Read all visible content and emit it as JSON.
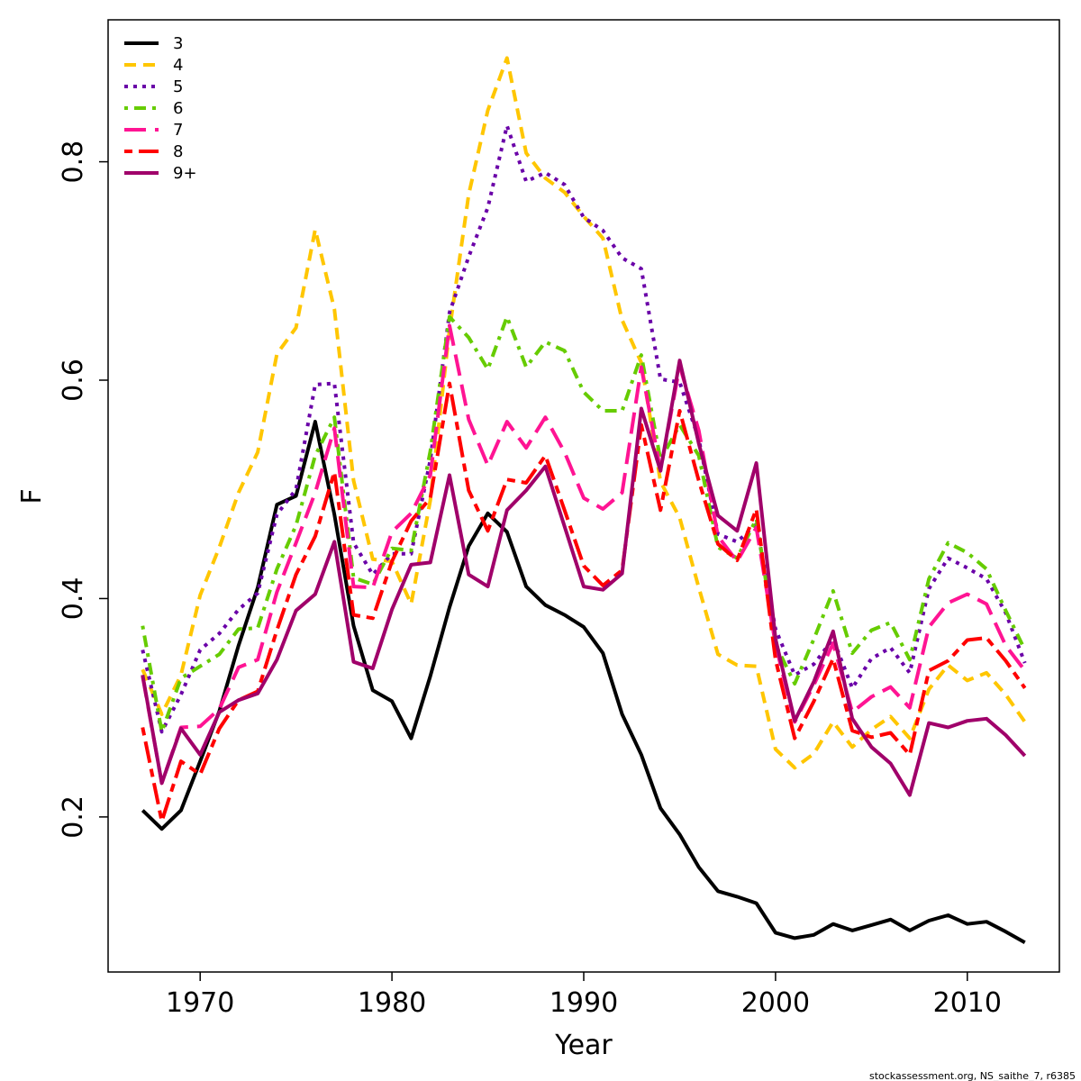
{
  "credit": "stockassessment.org, NS_saithe_7, r6385",
  "chart_data": {
    "type": "line",
    "xlabel": "Year",
    "ylabel": "F",
    "xlim": [
      1965.2,
      2014.8
    ],
    "ylim": [
      0.058,
      0.93
    ],
    "xticks": [
      1970,
      1980,
      1990,
      2000,
      2010
    ],
    "yticks": [
      0.2,
      0.4,
      0.6,
      0.8
    ],
    "grid": false,
    "legend_position": "top-left",
    "x": [
      1967,
      1968,
      1969,
      1970,
      1971,
      1972,
      1973,
      1974,
      1975,
      1976,
      1977,
      1978,
      1979,
      1980,
      1981,
      1982,
      1983,
      1984,
      1985,
      1986,
      1987,
      1988,
      1989,
      1990,
      1991,
      1992,
      1993,
      1994,
      1995,
      1996,
      1997,
      1998,
      1999,
      2000,
      2001,
      2002,
      2003,
      2004,
      2005,
      2006,
      2007,
      2008,
      2009,
      2010,
      2011,
      2012,
      2013
    ],
    "series": [
      {
        "name": "3",
        "color": "#000000",
        "dash": "solid",
        "values": [
          0.206,
          0.189,
          0.206,
          0.251,
          0.297,
          0.357,
          0.41,
          0.486,
          0.494,
          0.562,
          0.477,
          0.375,
          0.316,
          0.306,
          0.272,
          0.329,
          0.392,
          0.448,
          0.478,
          0.461,
          0.411,
          0.394,
          0.385,
          0.374,
          0.35,
          0.294,
          0.257,
          0.208,
          0.184,
          0.154,
          0.132,
          0.127,
          0.121,
          0.094,
          0.089,
          0.092,
          0.102,
          0.096,
          0.101,
          0.106,
          0.096,
          0.105,
          0.11,
          0.102,
          0.104,
          0.095,
          0.085
        ]
      },
      {
        "name": "4",
        "color": "#FFC600",
        "dash": "dash",
        "values": [
          0.335,
          0.294,
          0.33,
          0.403,
          0.447,
          0.497,
          0.534,
          0.624,
          0.648,
          0.738,
          0.665,
          0.508,
          0.436,
          0.434,
          0.395,
          0.49,
          0.646,
          0.77,
          0.847,
          0.895,
          0.808,
          0.785,
          0.772,
          0.75,
          0.73,
          0.655,
          0.616,
          0.507,
          0.474,
          0.41,
          0.349,
          0.339,
          0.338,
          0.262,
          0.245,
          0.258,
          0.287,
          0.264,
          0.28,
          0.292,
          0.272,
          0.317,
          0.339,
          0.325,
          0.332,
          0.312,
          0.287
        ]
      },
      {
        "name": "5",
        "color": "#6A00A8",
        "dash": "dot",
        "values": [
          0.353,
          0.278,
          0.312,
          0.353,
          0.368,
          0.39,
          0.405,
          0.477,
          0.5,
          0.596,
          0.597,
          0.451,
          0.422,
          0.441,
          0.441,
          0.527,
          0.662,
          0.713,
          0.758,
          0.833,
          0.782,
          0.79,
          0.779,
          0.749,
          0.737,
          0.712,
          0.702,
          0.601,
          0.598,
          0.546,
          0.459,
          0.452,
          0.468,
          0.372,
          0.33,
          0.34,
          0.363,
          0.318,
          0.345,
          0.355,
          0.332,
          0.409,
          0.437,
          0.428,
          0.418,
          0.387,
          0.341
        ]
      },
      {
        "name": "6",
        "color": "#66CC00",
        "dash": "dotdash",
        "values": [
          0.375,
          0.278,
          0.327,
          0.338,
          0.349,
          0.372,
          0.373,
          0.427,
          0.467,
          0.531,
          0.566,
          0.419,
          0.413,
          0.446,
          0.444,
          0.535,
          0.658,
          0.639,
          0.61,
          0.658,
          0.612,
          0.635,
          0.627,
          0.589,
          0.572,
          0.572,
          0.623,
          0.527,
          0.559,
          0.531,
          0.447,
          0.437,
          0.473,
          0.358,
          0.322,
          0.363,
          0.407,
          0.35,
          0.371,
          0.378,
          0.344,
          0.418,
          0.451,
          0.442,
          0.427,
          0.389,
          0.353
        ]
      },
      {
        "name": "7",
        "color": "#FF1493",
        "dash": "longdash",
        "values": [
          0.329,
          0.231,
          0.282,
          0.283,
          0.299,
          0.337,
          0.344,
          0.406,
          0.451,
          0.497,
          0.556,
          0.411,
          0.41,
          0.461,
          0.478,
          0.513,
          0.65,
          0.564,
          0.522,
          0.562,
          0.538,
          0.566,
          0.534,
          0.492,
          0.482,
          0.497,
          0.612,
          0.517,
          0.613,
          0.554,
          0.457,
          0.434,
          0.465,
          0.358,
          0.287,
          0.321,
          0.359,
          0.296,
          0.31,
          0.319,
          0.3,
          0.374,
          0.396,
          0.404,
          0.395,
          0.357,
          0.334
        ]
      },
      {
        "name": "8",
        "color": "#FF0000",
        "dash": "twodash",
        "values": [
          0.282,
          0.196,
          0.251,
          0.239,
          0.281,
          0.307,
          0.315,
          0.371,
          0.422,
          0.457,
          0.516,
          0.385,
          0.382,
          0.434,
          0.471,
          0.492,
          0.597,
          0.499,
          0.462,
          0.509,
          0.506,
          0.531,
          0.481,
          0.43,
          0.412,
          0.426,
          0.559,
          0.481,
          0.572,
          0.508,
          0.45,
          0.435,
          0.482,
          0.344,
          0.272,
          0.306,
          0.345,
          0.279,
          0.273,
          0.277,
          0.257,
          0.334,
          0.343,
          0.362,
          0.364,
          0.343,
          0.318
        ]
      },
      {
        "name": "9+",
        "color": "#A0006A",
        "dash": "solid",
        "values": [
          0.33,
          0.231,
          0.281,
          0.257,
          0.296,
          0.307,
          0.313,
          0.344,
          0.389,
          0.404,
          0.452,
          0.342,
          0.336,
          0.39,
          0.431,
          0.433,
          0.513,
          0.422,
          0.411,
          0.481,
          0.499,
          0.521,
          0.466,
          0.411,
          0.408,
          0.423,
          0.574,
          0.517,
          0.618,
          0.542,
          0.476,
          0.462,
          0.524,
          0.363,
          0.288,
          0.324,
          0.37,
          0.29,
          0.264,
          0.249,
          0.22,
          0.286,
          0.282,
          0.288,
          0.29,
          0.275,
          0.256
        ]
      }
    ]
  }
}
